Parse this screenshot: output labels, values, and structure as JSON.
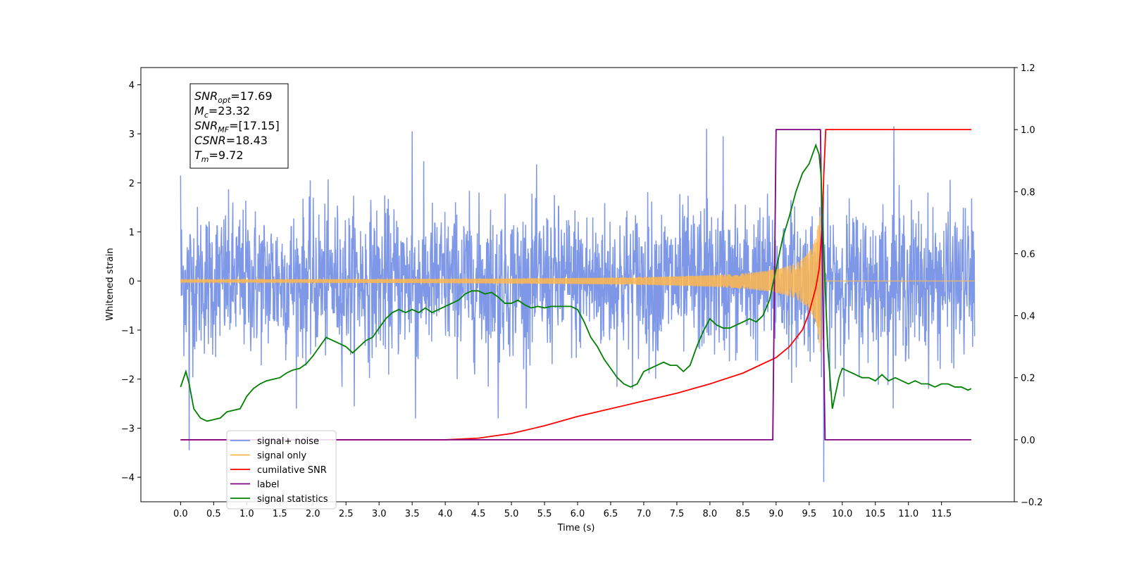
{
  "chart_data": {
    "type": "line",
    "xlabel": "Time (s)",
    "ylabel_left": "Whitened strain",
    "ylabel_right": "",
    "xlim": [
      -0.6,
      12.6
    ],
    "ylim_left": [
      -4.5,
      4.35
    ],
    "ylim_right": [
      -0.2,
      1.2
    ],
    "x_ticks": [
      0.0,
      0.5,
      1.0,
      1.5,
      2.0,
      2.5,
      3.0,
      3.5,
      4.0,
      4.5,
      5.0,
      5.5,
      6.0,
      6.5,
      7.0,
      7.5,
      8.0,
      8.5,
      9.0,
      9.5,
      10.0,
      10.5,
      11.0,
      11.5
    ],
    "x_tick_labels": [
      "0.0",
      "0.5",
      "1.0",
      "1.5",
      "2.0",
      "2.5",
      "3.0",
      "3.5",
      "4.0",
      "4.5",
      "5.0",
      "5.5",
      "6.0",
      "6.5",
      "7.0",
      "7.5",
      "8.0",
      "8.5",
      "9.0",
      "9.5",
      "10.0",
      "10.5",
      "11.0",
      "11.5"
    ],
    "y_left_ticks": [
      -4,
      -3,
      -2,
      -1,
      0,
      1,
      2,
      3,
      4
    ],
    "y_left_tick_labels": [
      "−4",
      "−3",
      "−2",
      "−1",
      "0",
      "1",
      "2",
      "3",
      "4"
    ],
    "y_right_ticks": [
      -0.2,
      0.0,
      0.2,
      0.4,
      0.6,
      0.8,
      1.0,
      1.2
    ],
    "y_right_tick_labels": [
      "−0.2",
      "0.0",
      "0.2",
      "0.4",
      "0.6",
      "0.8",
      "1.0",
      "1.2"
    ],
    "grid": false,
    "legend_position": "lower-left",
    "info_box": {
      "position": "top-left",
      "lines": [
        {
          "base": "SNR",
          "sub": "opt",
          "value": "=17.69"
        },
        {
          "base": "M",
          "sub": "c",
          "value": "=23.32"
        },
        {
          "base": "SNR",
          "sub": "MF",
          "value": "=[17.15]"
        },
        {
          "base": "CSNR",
          "sub": "",
          "value": "=18.43"
        },
        {
          "base": "T",
          "sub": "m",
          "value": "=9.72"
        }
      ]
    },
    "series": [
      {
        "name": "signal+ noise",
        "color": "#7792e6",
        "axis": "left",
        "kind": "noise",
        "x_range": [
          0.0,
          12.0
        ],
        "noise_std": 0.75,
        "notable_peaks": [
          {
            "x": 0.0,
            "y": 2.15
          },
          {
            "x": 0.13,
            "y": -3.45
          },
          {
            "x": 3.5,
            "y": 3.05
          },
          {
            "x": 3.55,
            "y": -2.8
          },
          {
            "x": 4.8,
            "y": -2.8
          },
          {
            "x": 7.95,
            "y": 3.1
          },
          {
            "x": 8.2,
            "y": 2.95
          },
          {
            "x": 9.72,
            "y": 3.95
          },
          {
            "x": 9.72,
            "y": -4.1
          },
          {
            "x": 10.78,
            "y": 3.15
          }
        ]
      },
      {
        "name": "signal only",
        "color": "#ffb74d",
        "axis": "left",
        "kind": "chirp",
        "x_range": [
          0.0,
          12.0
        ],
        "merger_time": 9.72,
        "amplitude_at_merger": 3.0
      },
      {
        "name": "cumilative SNR",
        "color": "#ff0000",
        "axis": "right",
        "x": [
          0.0,
          4.0,
          4.5,
          5.0,
          5.5,
          6.0,
          6.5,
          7.0,
          7.5,
          8.0,
          8.5,
          9.0,
          9.2,
          9.4,
          9.5,
          9.6,
          9.65,
          9.7,
          9.72,
          9.75,
          11.95
        ],
        "y": [
          0.0,
          0.0,
          0.005,
          0.02,
          0.045,
          0.075,
          0.1,
          0.125,
          0.15,
          0.18,
          0.215,
          0.265,
          0.3,
          0.355,
          0.41,
          0.49,
          0.55,
          0.7,
          0.85,
          1.0,
          1.0
        ]
      },
      {
        "name": "label",
        "color": "#800080",
        "axis": "right",
        "x": [
          0.0,
          8.95,
          9.0,
          9.67,
          9.74,
          11.95
        ],
        "y": [
          0.0,
          0.0,
          1.0,
          1.0,
          0.0,
          0.0
        ]
      },
      {
        "name": "signal statistics",
        "color": "#008000",
        "axis": "right",
        "x": [
          0.0,
          0.08,
          0.13,
          0.2,
          0.3,
          0.4,
          0.5,
          0.6,
          0.7,
          0.8,
          0.9,
          1.0,
          1.1,
          1.2,
          1.3,
          1.4,
          1.5,
          1.6,
          1.7,
          1.8,
          1.9,
          2.0,
          2.1,
          2.2,
          2.3,
          2.4,
          2.5,
          2.6,
          2.7,
          2.8,
          2.9,
          3.0,
          3.1,
          3.2,
          3.3,
          3.4,
          3.5,
          3.6,
          3.7,
          3.8,
          3.9,
          4.0,
          4.1,
          4.2,
          4.3,
          4.4,
          4.5,
          4.6,
          4.7,
          4.8,
          4.9,
          5.0,
          5.1,
          5.2,
          5.3,
          5.4,
          5.5,
          5.6,
          5.7,
          5.8,
          5.9,
          6.0,
          6.1,
          6.2,
          6.3,
          6.4,
          6.5,
          6.6,
          6.7,
          6.8,
          6.9,
          7.0,
          7.1,
          7.2,
          7.3,
          7.4,
          7.5,
          7.6,
          7.7,
          7.8,
          7.9,
          8.0,
          8.1,
          8.2,
          8.3,
          8.4,
          8.5,
          8.6,
          8.7,
          8.8,
          8.9,
          9.0,
          9.1,
          9.2,
          9.3,
          9.4,
          9.5,
          9.6,
          9.65,
          9.68,
          9.72,
          9.78,
          9.85,
          9.95,
          10.0,
          10.1,
          10.2,
          10.3,
          10.4,
          10.5,
          10.6,
          10.7,
          10.8,
          10.9,
          11.0,
          11.1,
          11.2,
          11.3,
          11.4,
          11.5,
          11.6,
          11.7,
          11.8,
          11.9,
          11.95
        ],
        "y": [
          0.17,
          0.22,
          0.18,
          0.1,
          0.07,
          0.06,
          0.065,
          0.07,
          0.09,
          0.095,
          0.1,
          0.14,
          0.165,
          0.18,
          0.19,
          0.195,
          0.2,
          0.215,
          0.225,
          0.23,
          0.245,
          0.27,
          0.3,
          0.33,
          0.32,
          0.31,
          0.3,
          0.28,
          0.3,
          0.32,
          0.33,
          0.36,
          0.39,
          0.41,
          0.42,
          0.41,
          0.42,
          0.41,
          0.425,
          0.41,
          0.42,
          0.43,
          0.44,
          0.45,
          0.47,
          0.48,
          0.48,
          0.47,
          0.475,
          0.46,
          0.44,
          0.44,
          0.45,
          0.435,
          0.425,
          0.43,
          0.425,
          0.43,
          0.43,
          0.43,
          0.43,
          0.42,
          0.38,
          0.33,
          0.3,
          0.26,
          0.23,
          0.2,
          0.18,
          0.17,
          0.18,
          0.22,
          0.23,
          0.24,
          0.25,
          0.24,
          0.24,
          0.22,
          0.24,
          0.3,
          0.35,
          0.39,
          0.37,
          0.36,
          0.36,
          0.37,
          0.38,
          0.39,
          0.38,
          0.4,
          0.45,
          0.55,
          0.65,
          0.72,
          0.8,
          0.86,
          0.89,
          0.95,
          0.92,
          0.85,
          0.6,
          0.3,
          0.1,
          0.2,
          0.23,
          0.22,
          0.21,
          0.2,
          0.2,
          0.19,
          0.21,
          0.19,
          0.2,
          0.19,
          0.18,
          0.19,
          0.18,
          0.18,
          0.17,
          0.18,
          0.18,
          0.17,
          0.17,
          0.16,
          0.165
        ]
      }
    ],
    "legend_entries": [
      {
        "label": "signal+ noise",
        "color": "#7792e6"
      },
      {
        "label": "signal only",
        "color": "#ffb74d"
      },
      {
        "label": "cumilative SNR",
        "color": "#ff0000"
      },
      {
        "label": "label",
        "color": "#800080"
      },
      {
        "label": "signal statistics",
        "color": "#008000"
      }
    ]
  }
}
